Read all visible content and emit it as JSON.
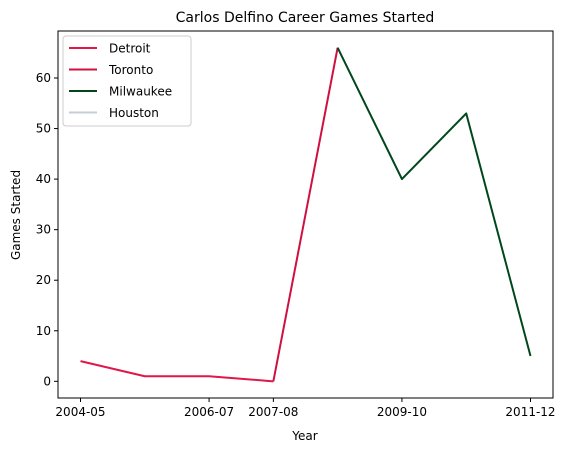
{
  "chart_data": {
    "type": "line",
    "title": "Carlos Delfino Career Games Started",
    "xlabel": "Year",
    "ylabel": "Games Started",
    "x_ticks": [
      "2004-05",
      "2006-07",
      "2007-08",
      "2009-10",
      "2011-12"
    ],
    "y_ticks": [
      0,
      10,
      20,
      30,
      40,
      50,
      60
    ],
    "ylim": [
      -3.3,
      69.3
    ],
    "grid": false,
    "legend_position": "top-left",
    "series": [
      {
        "name": "Detroit",
        "color": "#e0174b",
        "points": [
          {
            "x": "2004-05",
            "y": 4
          },
          {
            "x": "2005-06",
            "y": 1
          },
          {
            "x": "2006-07",
            "y": 1
          },
          {
            "x": "2007-08",
            "y": 0
          }
        ]
      },
      {
        "name": "Toronto",
        "color": "#ce1141",
        "points": [
          {
            "x": "2007-08",
            "y": 0
          },
          {
            "x": "2008-09",
            "y": 66
          }
        ]
      },
      {
        "name": "Milwaukee",
        "color": "#00471b",
        "points": [
          {
            "x": "2008-09",
            "y": 66
          },
          {
            "x": "2009-10",
            "y": 40
          },
          {
            "x": "2010-11",
            "y": 53
          },
          {
            "x": "2011-12",
            "y": 5
          }
        ]
      },
      {
        "name": "Houston",
        "color": "#c4ced4",
        "points": []
      }
    ]
  }
}
